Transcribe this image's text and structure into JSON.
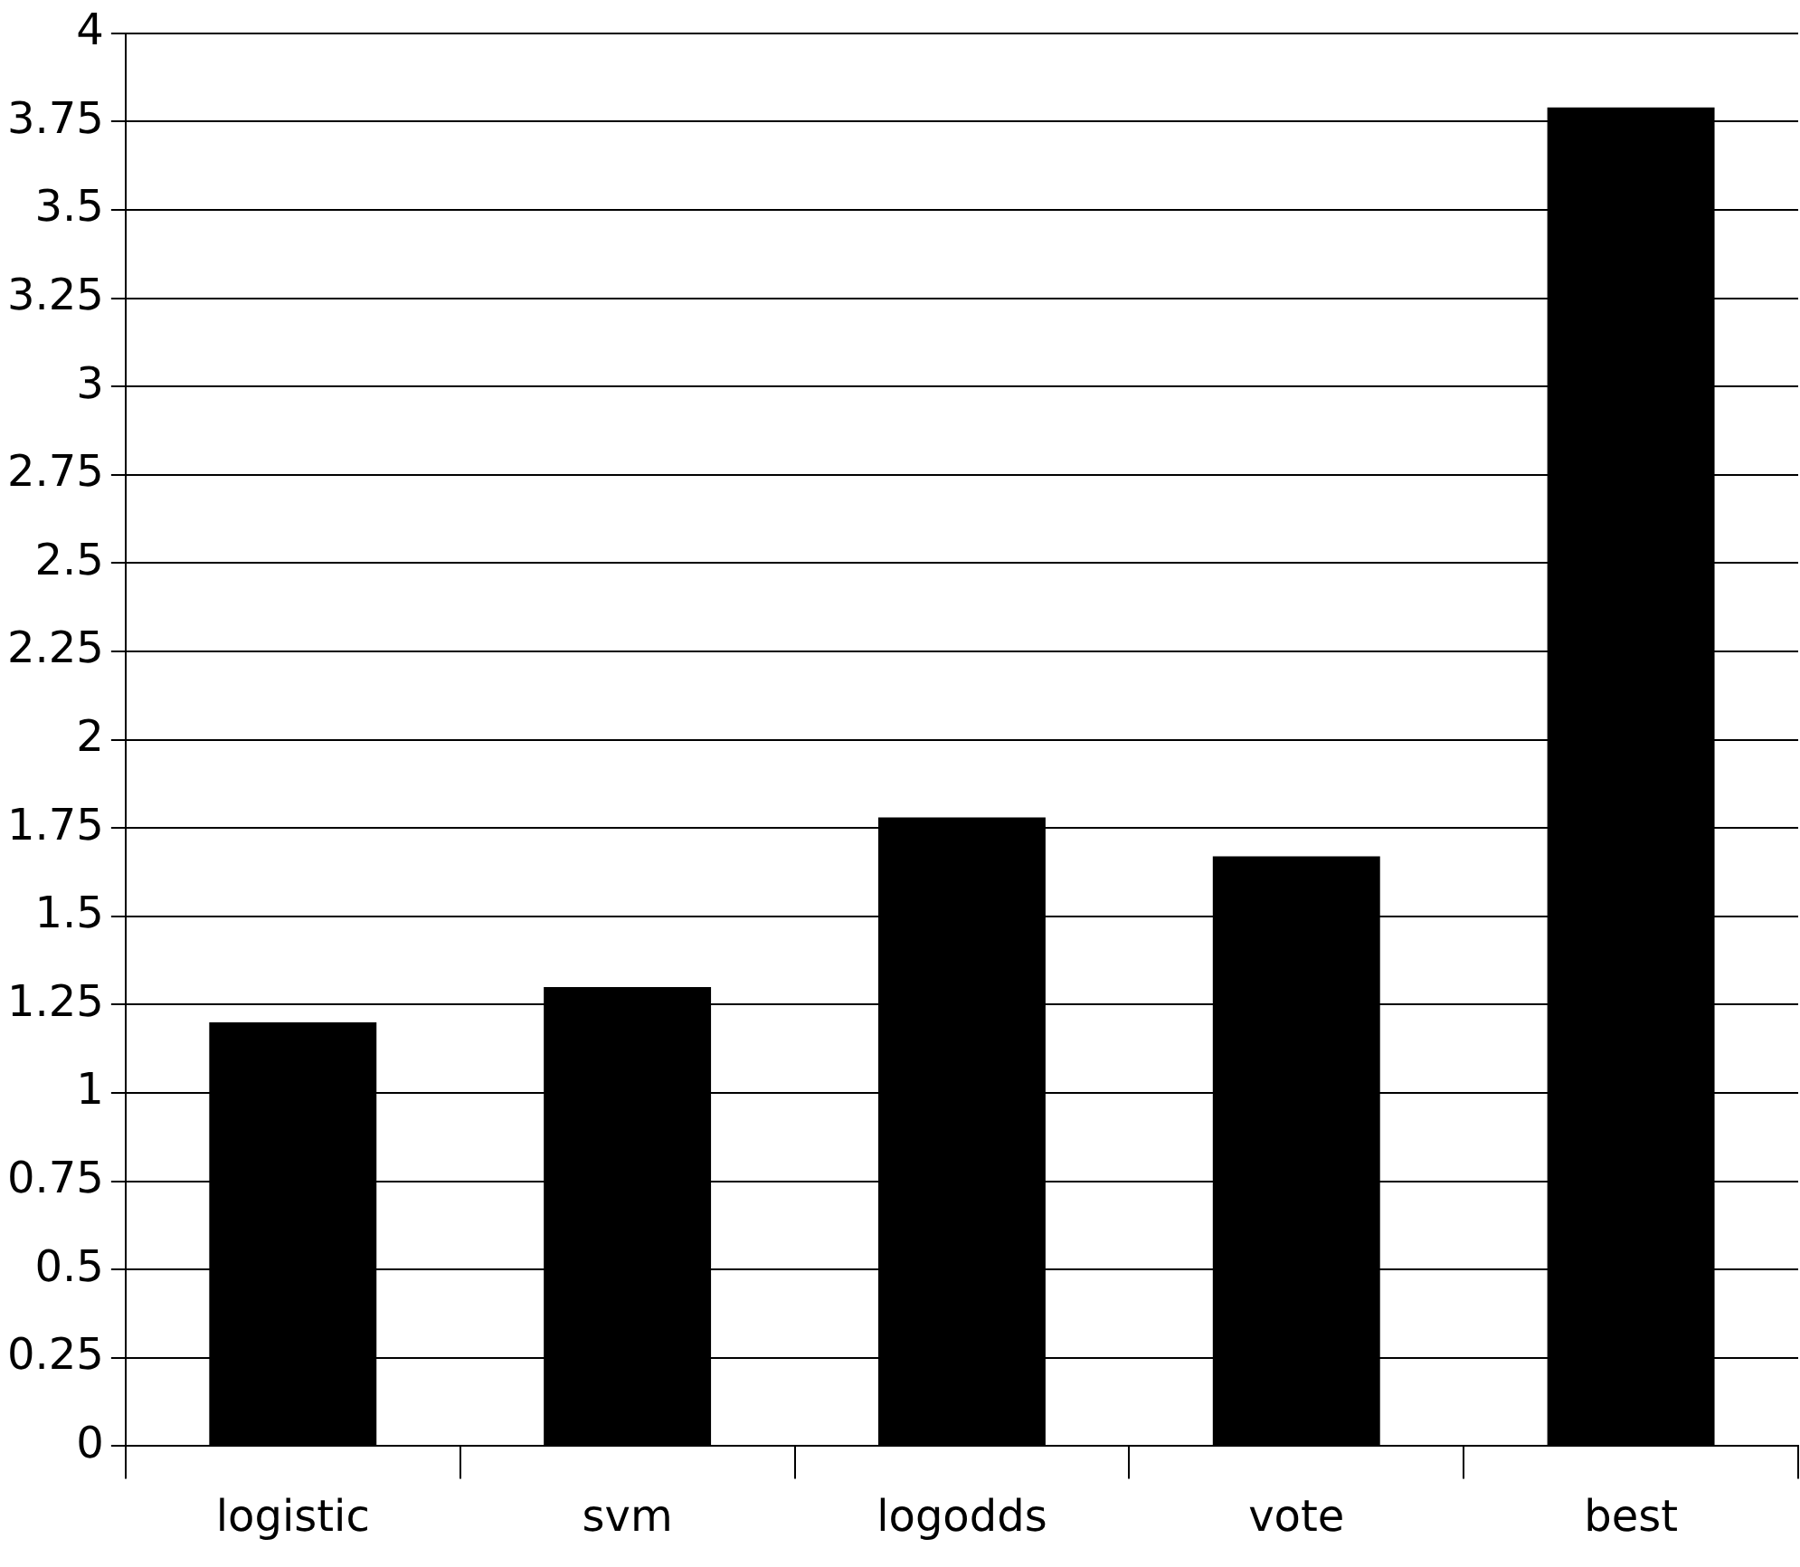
{
  "chart_data": {
    "type": "bar",
    "categories": [
      "logistic",
      "svm",
      "logodds",
      "vote",
      "best"
    ],
    "values": [
      1.2,
      1.3,
      1.78,
      1.67,
      3.79
    ],
    "color": "#000000",
    "ylim": [
      0,
      4
    ],
    "yticks": [
      0,
      0.25,
      0.5,
      0.75,
      1,
      1.25,
      1.5,
      1.75,
      2,
      2.25,
      2.5,
      2.75,
      3,
      3.25,
      3.5,
      3.75,
      4
    ],
    "grid": "y"
  }
}
